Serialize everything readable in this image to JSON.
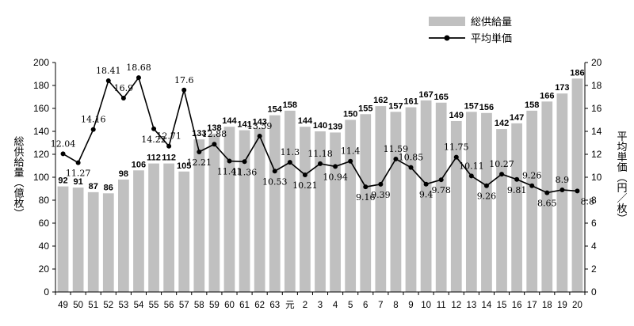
{
  "chart_data": {
    "type": "bar",
    "categories": [
      "49",
      "50",
      "51",
      "52",
      "53",
      "54",
      "55",
      "56",
      "57",
      "58",
      "59",
      "60",
      "61",
      "62",
      "63",
      "元",
      "2",
      "3",
      "4",
      "5",
      "6",
      "7",
      "8",
      "9",
      "10",
      "11",
      "12",
      "13",
      "14",
      "15",
      "16",
      "17",
      "18",
      "19",
      "20"
    ],
    "series": [
      {
        "name": "総供給量",
        "type": "bar",
        "axis": "left",
        "color": "#c0c0c0",
        "values": [
          92,
          91,
          87,
          86,
          98,
          106,
          112,
          112,
          105,
          133,
          138,
          144,
          141,
          143,
          154,
          158,
          144,
          140,
          139,
          150,
          155,
          162,
          157,
          161,
          167,
          165,
          149,
          157,
          156,
          142,
          147,
          158,
          166,
          173,
          186
        ]
      },
      {
        "name": "平均単価",
        "type": "line",
        "axis": "right",
        "color": "#000000",
        "values": [
          12.04,
          11.27,
          14.16,
          18.41,
          16.9,
          18.68,
          14.22,
          12.71,
          17.6,
          12.21,
          12.88,
          11.41,
          11.36,
          13.59,
          10.53,
          11.3,
          10.21,
          11.18,
          10.94,
          11.4,
          9.16,
          9.39,
          11.59,
          10.85,
          9.4,
          9.78,
          11.75,
          10.11,
          9.26,
          10.27,
          9.81,
          9.26,
          8.65,
          8.9,
          8.8
        ],
        "labels": [
          "12.04",
          "11.27",
          "14.16",
          "18.41",
          "16.9",
          "18.68",
          "14.22",
          "12.71",
          "17.6",
          "12.21",
          "12.88",
          "11.41",
          "11.36",
          "13.59",
          "10.53",
          "11.3",
          "10.21",
          "11.18",
          "10.94",
          "11.4",
          "9.16",
          "9.39",
          "11.59",
          "10.85",
          "9.4",
          "9.78",
          "11.75",
          "10.11",
          "9.26",
          "10.27",
          "9.81",
          "9.26",
          "8.65",
          "8.9",
          "8.8"
        ]
      }
    ],
    "y_left": {
      "label": "総供給量（億枚）",
      "ylim": [
        0,
        200
      ],
      "ticks": [
        0,
        20,
        40,
        60,
        80,
        100,
        120,
        140,
        160,
        180,
        200
      ]
    },
    "y_right": {
      "label": "平均単価（円／枚）",
      "ylim": [
        0,
        20
      ],
      "ticks": [
        0,
        2,
        4,
        6,
        8,
        10,
        12,
        14,
        16,
        18,
        20
      ]
    },
    "grid": false,
    "legend_position": "top-right"
  }
}
